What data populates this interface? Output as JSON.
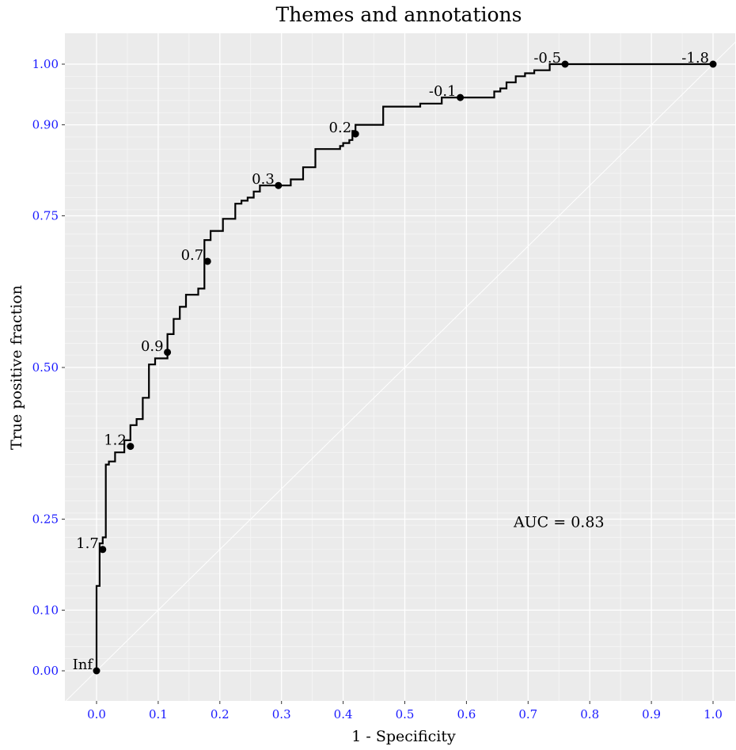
{
  "chart_data": {
    "type": "line",
    "title": "Themes and annotations",
    "xlabel": "1 - Specificity",
    "ylabel": "True positive fraction",
    "xlim": [
      -0.05,
      1.05
    ],
    "ylim": [
      -0.05,
      1.05
    ],
    "x_ticks": [
      0.0,
      0.1,
      0.2,
      0.3,
      0.4,
      0.5,
      0.6,
      0.7,
      0.8,
      0.9,
      1.0
    ],
    "x_tick_labels": [
      "0.0",
      "0.1",
      "0.2",
      "0.3",
      "0.4",
      "0.5",
      "0.6",
      "0.7",
      "0.8",
      "0.9",
      "1.0"
    ],
    "y_ticks": [
      0.0,
      0.1,
      0.25,
      0.5,
      0.75,
      0.9,
      1.0
    ],
    "y_tick_labels": [
      "0.00",
      "0.10",
      "0.25",
      "0.50",
      "0.75",
      "0.90",
      "1.00"
    ],
    "grid": true,
    "tick_label_color": "#1a1aff",
    "panel_background": "#ebebeb",
    "annotation": {
      "text": "AUC = 0.83",
      "x": 0.75,
      "y": 0.245
    },
    "diagonal_reference": true,
    "roc_curve": {
      "x": [
        0.0,
        0.0,
        0.005,
        0.005,
        0.01,
        0.01,
        0.015,
        0.015,
        0.02,
        0.02,
        0.03,
        0.03,
        0.045,
        0.045,
        0.055,
        0.055,
        0.065,
        0.065,
        0.075,
        0.075,
        0.085,
        0.085,
        0.095,
        0.095,
        0.115,
        0.115,
        0.125,
        0.125,
        0.135,
        0.135,
        0.145,
        0.145,
        0.165,
        0.165,
        0.175,
        0.175,
        0.185,
        0.185,
        0.205,
        0.205,
        0.225,
        0.225,
        0.235,
        0.235,
        0.245,
        0.245,
        0.255,
        0.255,
        0.265,
        0.265,
        0.285,
        0.285,
        0.315,
        0.315,
        0.335,
        0.335,
        0.355,
        0.355,
        0.395,
        0.395,
        0.4,
        0.4,
        0.41,
        0.41,
        0.415,
        0.415,
        0.42,
        0.42,
        0.465,
        0.465,
        0.525,
        0.525,
        0.56,
        0.56,
        0.575,
        0.575,
        0.645,
        0.645,
        0.655,
        0.655,
        0.665,
        0.665,
        0.68,
        0.68,
        0.695,
        0.695,
        0.71,
        0.71,
        0.735,
        0.735,
        0.76,
        0.76,
        1.0
      ],
      "y": [
        0.0,
        0.14,
        0.14,
        0.21,
        0.21,
        0.22,
        0.22,
        0.34,
        0.34,
        0.345,
        0.345,
        0.36,
        0.36,
        0.38,
        0.38,
        0.405,
        0.405,
        0.415,
        0.415,
        0.45,
        0.45,
        0.505,
        0.505,
        0.515,
        0.515,
        0.555,
        0.555,
        0.58,
        0.58,
        0.6,
        0.6,
        0.62,
        0.62,
        0.63,
        0.63,
        0.71,
        0.71,
        0.725,
        0.725,
        0.745,
        0.745,
        0.77,
        0.77,
        0.775,
        0.775,
        0.78,
        0.78,
        0.79,
        0.79,
        0.8,
        0.8,
        0.8,
        0.8,
        0.81,
        0.81,
        0.83,
        0.83,
        0.86,
        0.86,
        0.865,
        0.865,
        0.87,
        0.87,
        0.875,
        0.875,
        0.89,
        0.89,
        0.9,
        0.9,
        0.93,
        0.93,
        0.935,
        0.935,
        0.945,
        0.945,
        0.945,
        0.945,
        0.955,
        0.955,
        0.96,
        0.96,
        0.97,
        0.97,
        0.98,
        0.98,
        0.985,
        0.985,
        0.99,
        0.99,
        1.0,
        1.0,
        1.0,
        1.0
      ]
    },
    "cutoff_points": [
      {
        "label": "Inf",
        "x": 0.0,
        "y": 0.0
      },
      {
        "label": "1.7",
        "x": 0.01,
        "y": 0.2
      },
      {
        "label": "1.2",
        "x": 0.055,
        "y": 0.37
      },
      {
        "label": "0.9",
        "x": 0.115,
        "y": 0.525
      },
      {
        "label": "0.7",
        "x": 0.18,
        "y": 0.675
      },
      {
        "label": "0.3",
        "x": 0.295,
        "y": 0.8
      },
      {
        "label": "0.2",
        "x": 0.42,
        "y": 0.885
      },
      {
        "label": "-0.1",
        "x": 0.59,
        "y": 0.945
      },
      {
        "label": "-0.5",
        "x": 0.76,
        "y": 1.0
      },
      {
        "label": "-1.8",
        "x": 1.0,
        "y": 1.0
      }
    ]
  }
}
